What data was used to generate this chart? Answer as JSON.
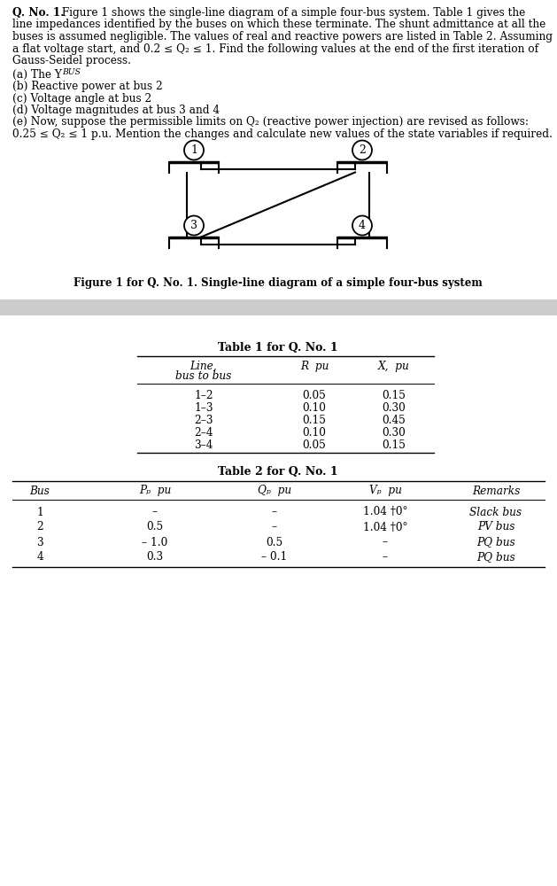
{
  "white": "#ffffff",
  "black": "#000000",
  "gray_band": "#cccccc",
  "q_bold": "Q. No. 1.",
  "q_rest": " Figure 1 shows the single-line diagram of a simple four-bus system. Table 1 gives the",
  "para_lines": [
    "line impedances identified by the buses on which these terminate. The shunt admittance at all the",
    "buses is assumed negligible. The values of real and reactive powers are listed in Table 2. Assuming",
    "a flat voltage start, and 0.2 ≤ Q₂ ≤ 1. Find the following values at the end of the first iteration of",
    "Gauss-Seidel process."
  ],
  "parts": [
    "(a) The Y_BUS",
    "(b) Reactive power at bus 2",
    "(c) Voltage angle at bus 2",
    "(d) Voltage magnitudes at bus 3 and 4",
    "(e) Now, suppose the permissible limits on Q₂ (reactive power injection) are revised as follows:",
    "0.25 ≤ Q₂ ≤ 1 p.u. Mention the changes and calculate new values of the state variables if required."
  ],
  "fig_caption": "Figure 1 for Q. No. 1. Single-line diagram of a simple four-bus system",
  "table1_title": "Table 1 for Q. No. 1",
  "table1_col1_hdr1": "Line,",
  "table1_col1_hdr2": "bus to bus",
  "table1_col2_hdr": "R  pu",
  "table1_col3_hdr": "X,  pu",
  "table1_rows": [
    [
      "1–2",
      "0.05",
      "0.15"
    ],
    [
      "1–3",
      "0.10",
      "0.30"
    ],
    [
      "2–3",
      "0.15",
      "0.45"
    ],
    [
      "2–4",
      "0.10",
      "0.30"
    ],
    [
      "3–4",
      "0.05",
      "0.15"
    ]
  ],
  "table2_title": "Table 2 for Q. No. 1",
  "table2_col1_hdr": "Bus",
  "table2_col2_hdr": "P_p  pu",
  "table2_col3_hdr": "Q_p  pu",
  "table2_col4_hdr": "V_p  pu",
  "table2_col5_hdr": "Remarks",
  "table2_rows": [
    [
      "1",
      "–",
      "–",
      "1.04 †0°",
      "Slack bus"
    ],
    [
      "2",
      "0.5",
      "–",
      "1.04 †0°",
      "PV bus"
    ],
    [
      "3",
      "– 1.0",
      "0.5",
      "–",
      "PQ bus"
    ],
    [
      "4",
      "0.3",
      "– 0.1",
      "–",
      "PQ bus"
    ]
  ]
}
